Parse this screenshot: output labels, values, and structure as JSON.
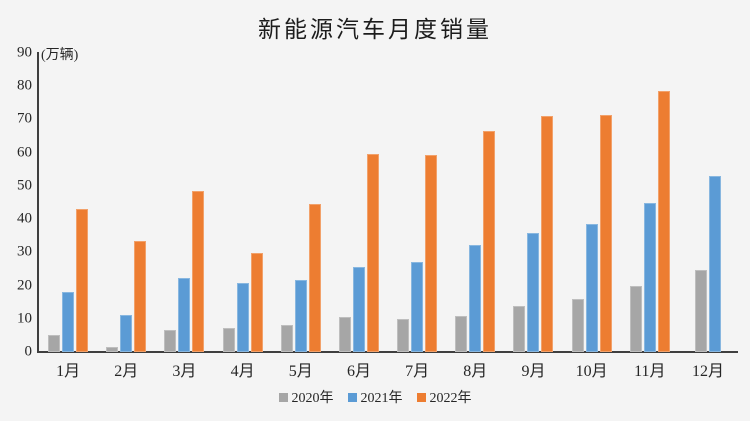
{
  "title": "新能源汽车月度销量",
  "y_unit_label": "(万辆)",
  "colors": {
    "background": "#f4f4f4",
    "axis": "#3f3f3f",
    "series_2020": "#A6A6A6",
    "series_2021": "#5B9BD5",
    "series_2022": "#ED7D31"
  },
  "chart_data": {
    "type": "bar",
    "title": "新能源汽车月度销量",
    "ylabel": "(万辆)",
    "xlabel": "",
    "categories": [
      "1月",
      "2月",
      "3月",
      "4月",
      "5月",
      "6月",
      "7月",
      "8月",
      "9月",
      "10月",
      "11月",
      "12月"
    ],
    "series": [
      {
        "name": "2020年",
        "color": "#A6A6A6",
        "values": [
          5.2,
          1.5,
          6.6,
          7.3,
          8.2,
          10.4,
          9.8,
          10.8,
          13.8,
          16.0,
          20.0,
          24.8
        ]
      },
      {
        "name": "2021年",
        "color": "#5B9BD5",
        "values": [
          18.0,
          11.0,
          22.4,
          20.7,
          21.7,
          25.7,
          27.0,
          32.2,
          35.7,
          38.4,
          44.9,
          53.0
        ]
      },
      {
        "name": "2022年",
        "color": "#ED7D31",
        "values": [
          43.1,
          33.3,
          48.5,
          29.9,
          44.6,
          59.5,
          59.3,
          66.6,
          70.9,
          71.4,
          78.6,
          null
        ]
      }
    ],
    "ylim": [
      0,
      90
    ],
    "yticks": [
      0,
      10,
      20,
      30,
      40,
      50,
      60,
      70,
      80,
      90
    ],
    "grid": false,
    "legend_position": "bottom"
  }
}
